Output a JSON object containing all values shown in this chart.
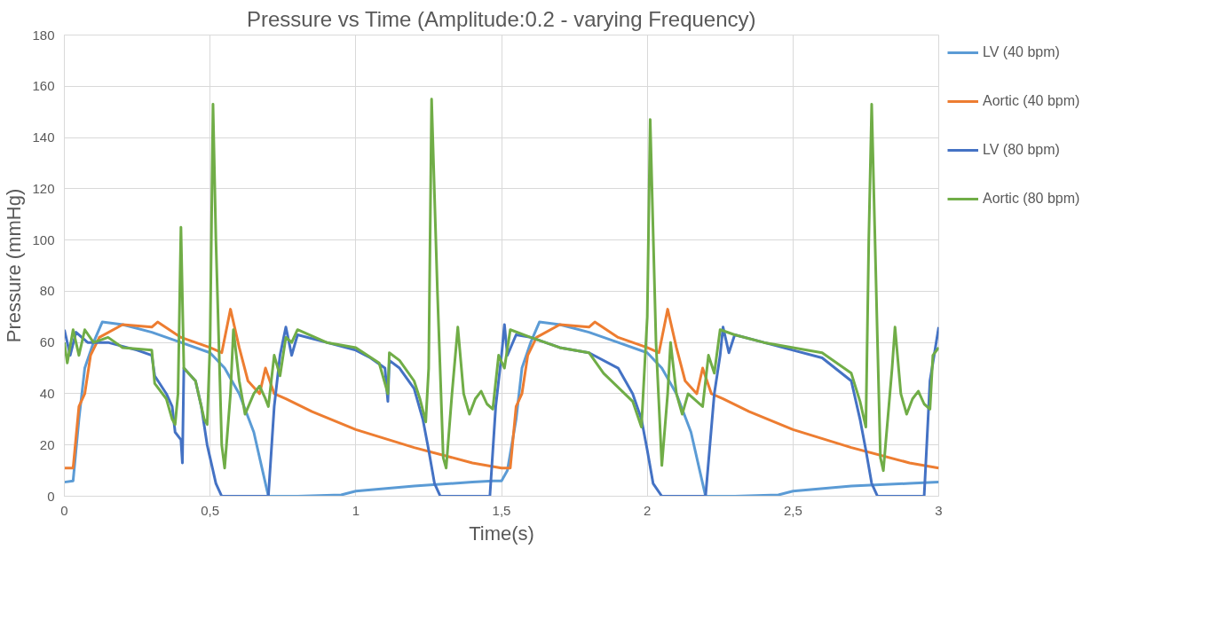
{
  "chart_data": {
    "type": "line",
    "title": "Pressure vs Time (Amplitude:0.2 - varying Frequency)",
    "xlabel": "Time(s)",
    "ylabel": "Pressure (mmHg)",
    "xlim": [
      0,
      3
    ],
    "ylim": [
      0,
      180
    ],
    "xticks": [
      0,
      {
        "value": 0.5,
        "label": "0,5"
      },
      1,
      {
        "value": 1.5,
        "label": "1,5"
      },
      2,
      {
        "value": 2.5,
        "label": "2,5"
      },
      3
    ],
    "yticks": [
      0,
      20,
      40,
      60,
      80,
      100,
      120,
      140,
      160,
      180
    ],
    "grid": true,
    "legend": "right",
    "marker": "none",
    "line_style": "solid",
    "series": [
      {
        "name": "LV (40 bpm)",
        "color": "#5b9bd5",
        "x": [
          0,
          0.03,
          0.05,
          0.07,
          0.1,
          0.13,
          0.2,
          0.3,
          0.4,
          0.5,
          0.55,
          0.6,
          0.65,
          0.68,
          0.7,
          0.8,
          0.95,
          1.0,
          1.2,
          1.4,
          1.47,
          1.5,
          1.52,
          1.55,
          1.57,
          1.6,
          1.63,
          1.7,
          1.8,
          1.9,
          2.0,
          2.05,
          2.1,
          2.15,
          2.18,
          2.2,
          2.3,
          2.45,
          2.5,
          2.7,
          2.9,
          3.0
        ],
        "values": [
          5.5,
          6,
          30,
          50,
          60,
          68,
          67,
          64,
          60,
          56,
          50,
          40,
          25,
          10,
          0,
          0,
          0.5,
          2,
          4,
          5.5,
          6,
          6,
          10,
          30,
          50,
          60,
          68,
          67,
          64,
          60,
          56,
          50,
          40,
          25,
          10,
          0,
          0,
          0.5,
          2,
          4,
          5,
          5.5
        ]
      },
      {
        "name": "Aortic (40 bpm)",
        "color": "#ed7d31",
        "x": [
          0,
          0.03,
          0.05,
          0.07,
          0.09,
          0.12,
          0.2,
          0.3,
          0.32,
          0.4,
          0.5,
          0.54,
          0.57,
          0.6,
          0.63,
          0.67,
          0.69,
          0.72,
          0.76,
          0.85,
          1.0,
          1.2,
          1.4,
          1.5,
          1.53,
          1.55,
          1.57,
          1.59,
          1.62,
          1.7,
          1.8,
          1.82,
          1.9,
          2.0,
          2.04,
          2.07,
          2.1,
          2.13,
          2.17,
          2.19,
          2.22,
          2.26,
          2.35,
          2.5,
          2.7,
          2.9,
          3.0
        ],
        "values": [
          11,
          11,
          35,
          40,
          55,
          62,
          67,
          66,
          68,
          62,
          58,
          56,
          73,
          58,
          45,
          40,
          50,
          40,
          38,
          33,
          26,
          19,
          13,
          11,
          11,
          35,
          40,
          55,
          62,
          67,
          66,
          68,
          62,
          58,
          56,
          73,
          58,
          45,
          40,
          50,
          40,
          38,
          33,
          26,
          19,
          13,
          11
        ]
      },
      {
        "name": "LV (80 bpm)",
        "color": "#4472c4",
        "x": [
          0,
          0.02,
          0.04,
          0.08,
          0.15,
          0.25,
          0.3,
          0.31,
          0.35,
          0.37,
          0.38,
          0.4,
          0.405,
          0.41,
          0.45,
          0.47,
          0.49,
          0.5,
          0.52,
          0.54,
          0.7,
          0.72,
          0.74,
          0.76,
          0.78,
          0.8,
          0.9,
          1.0,
          1.05,
          1.1,
          1.11,
          1.115,
          1.15,
          1.2,
          1.23,
          1.25,
          1.27,
          1.29,
          1.46,
          1.48,
          1.5,
          1.51,
          1.52,
          1.55,
          1.6,
          1.7,
          1.8,
          1.9,
          1.95,
          1.98,
          2.0,
          2.02,
          2.05,
          2.2,
          2.23,
          2.25,
          2.26,
          2.28,
          2.3,
          2.4,
          2.5,
          2.6,
          2.7,
          2.73,
          2.75,
          2.77,
          2.79,
          2.95,
          2.97,
          3.0
        ],
        "values": [
          65,
          55,
          64,
          60,
          60,
          57,
          55,
          47,
          40,
          35,
          25,
          22,
          13,
          50,
          45,
          35,
          20,
          15,
          5,
          0,
          0,
          35,
          55,
          66,
          55,
          63,
          60,
          57,
          54,
          50,
          37,
          53,
          50,
          42,
          30,
          18,
          5,
          0,
          0,
          35,
          55,
          67,
          55,
          63,
          62,
          58,
          56,
          50,
          40,
          30,
          18,
          5,
          0,
          0,
          40,
          55,
          66,
          56,
          63,
          60,
          57,
          54,
          45,
          30,
          18,
          5,
          0,
          0,
          45,
          66
        ]
      },
      {
        "name": "Aortic (80 bpm)",
        "color": "#70ad47",
        "x": [
          0,
          0.01,
          0.03,
          0.05,
          0.07,
          0.1,
          0.15,
          0.2,
          0.3,
          0.31,
          0.35,
          0.37,
          0.38,
          0.39,
          0.4,
          0.41,
          0.45,
          0.48,
          0.49,
          0.5,
          0.51,
          0.52,
          0.54,
          0.55,
          0.57,
          0.58,
          0.6,
          0.62,
          0.65,
          0.67,
          0.69,
          0.7,
          0.72,
          0.74,
          0.76,
          0.78,
          0.8,
          0.9,
          1.0,
          1.08,
          1.11,
          1.115,
          1.15,
          1.2,
          1.22,
          1.24,
          1.25,
          1.26,
          1.28,
          1.3,
          1.31,
          1.33,
          1.35,
          1.37,
          1.39,
          1.41,
          1.43,
          1.45,
          1.47,
          1.49,
          1.51,
          1.53,
          1.6,
          1.7,
          1.8,
          1.85,
          1.95,
          1.98,
          2.0,
          2.01,
          2.03,
          2.05,
          2.07,
          2.08,
          2.1,
          2.12,
          2.14,
          2.16,
          2.19,
          2.21,
          2.23,
          2.25,
          2.3,
          2.4,
          2.5,
          2.6,
          2.7,
          2.73,
          2.75,
          2.76,
          2.77,
          2.79,
          2.8,
          2.81,
          2.84,
          2.85,
          2.87,
          2.89,
          2.91,
          2.93,
          2.95,
          2.97,
          2.98,
          3.0
        ],
        "values": [
          60,
          52,
          65,
          55,
          65,
          60,
          62,
          58,
          57,
          44,
          38,
          30,
          28,
          40,
          105,
          50,
          45,
          30,
          28,
          60,
          153,
          100,
          20,
          11,
          40,
          65,
          45,
          32,
          40,
          43,
          38,
          35,
          55,
          47,
          62,
          60,
          65,
          60,
          58,
          52,
          40,
          56,
          53,
          45,
          38,
          29,
          50,
          155,
          80,
          15,
          11,
          40,
          66,
          40,
          32,
          38,
          41,
          36,
          34,
          55,
          50,
          65,
          62,
          58,
          56,
          48,
          37,
          27,
          70,
          147,
          60,
          12,
          40,
          60,
          40,
          32,
          40,
          38,
          35,
          55,
          48,
          65,
          63,
          60,
          58,
          56,
          48,
          37,
          27,
          100,
          153,
          60,
          15,
          10,
          50,
          66,
          40,
          32,
          38,
          41,
          36,
          34,
          55,
          58
        ]
      }
    ]
  }
}
